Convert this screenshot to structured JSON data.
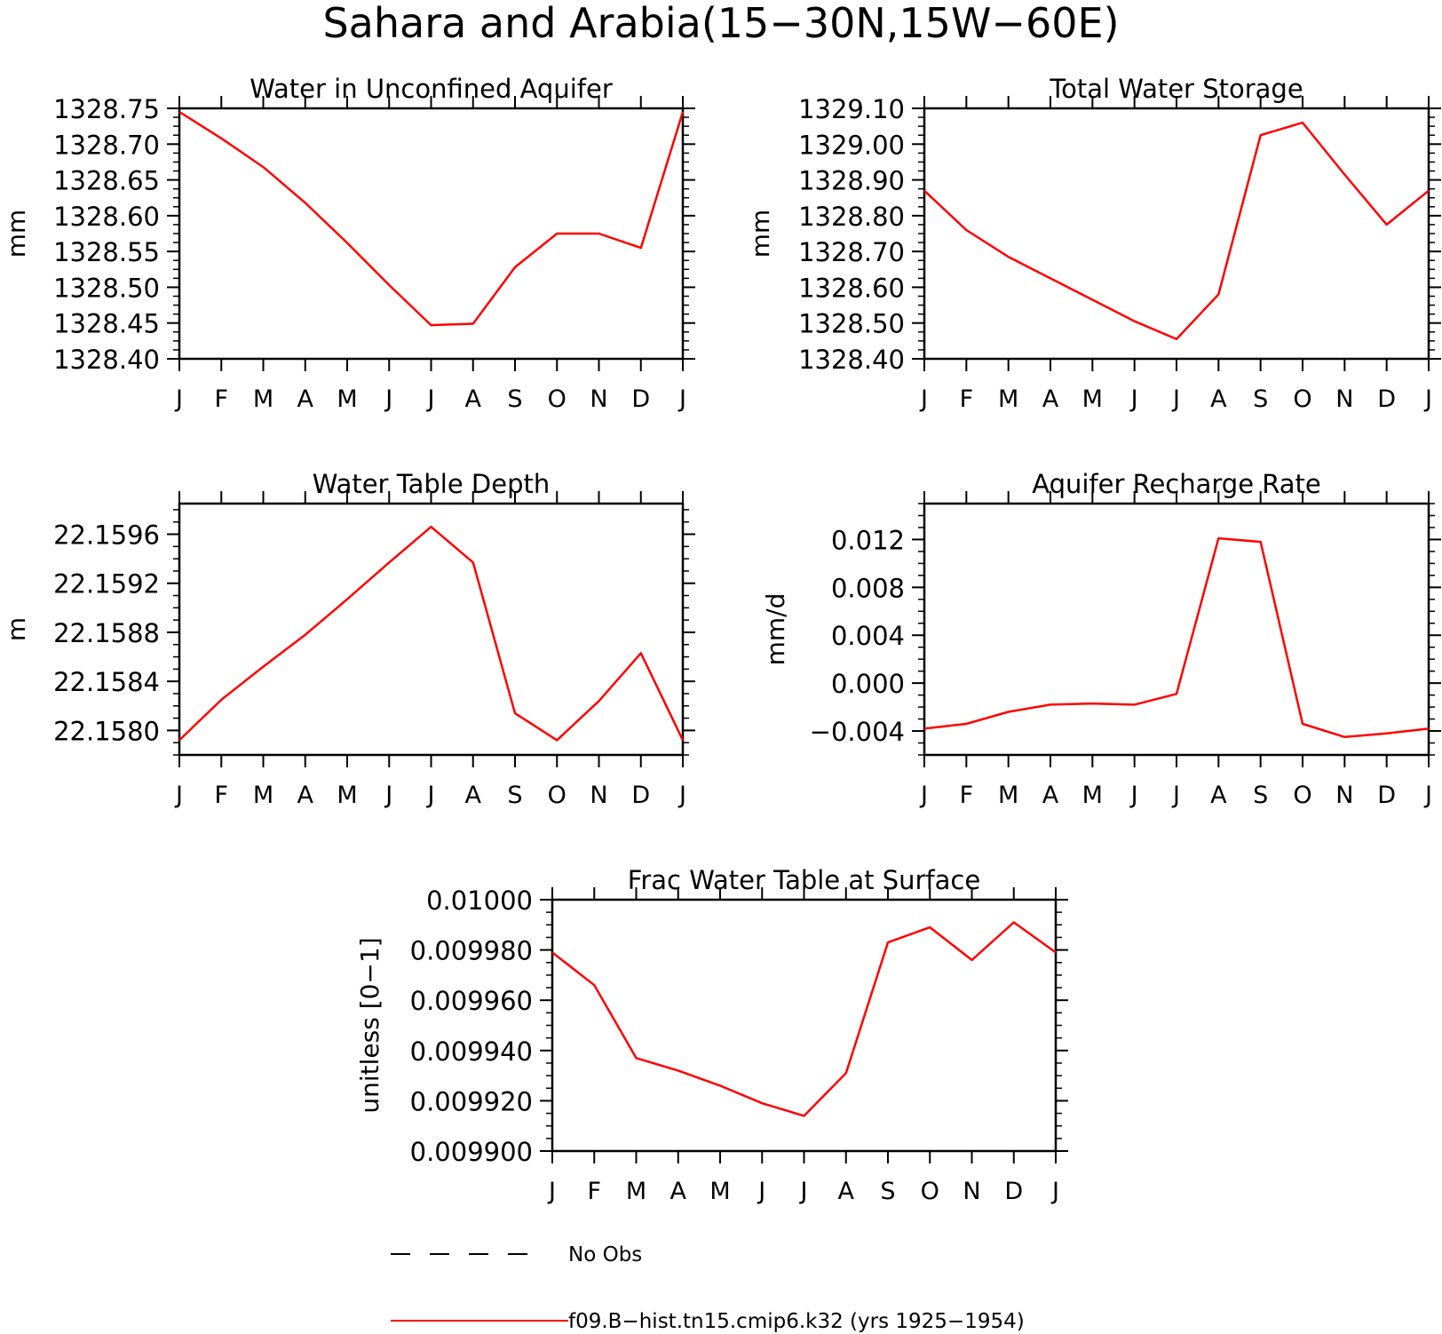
{
  "title": "Sahara and Arabia(15−30N,15W−60E)",
  "months": [
    "J",
    "F",
    "M",
    "A",
    "M",
    "J",
    "J",
    "A",
    "S",
    "O",
    "N",
    "D",
    "J"
  ],
  "series_color": "#ff0000",
  "legend": {
    "obs_label": "No Obs",
    "model_label": "f09.B−hist.tn15.cmip6.k32 (yrs 1925−1954)"
  },
  "chart_data": [
    {
      "type": "line",
      "title": "Water in Unconfined Aquifer",
      "ylabel": "mm",
      "ylim": [
        1328.4,
        1328.75
      ],
      "yticks": [
        1328.4,
        1328.45,
        1328.5,
        1328.55,
        1328.6,
        1328.65,
        1328.7,
        1328.75
      ],
      "ytick_labels": [
        "1328.40",
        "1328.45",
        "1328.50",
        "1328.55",
        "1328.60",
        "1328.65",
        "1328.70",
        "1328.75"
      ],
      "series": [
        {
          "values": [
            1328.745,
            1328.708,
            1328.668,
            1328.618,
            1328.562,
            1328.503,
            1328.447,
            1328.449,
            1328.528,
            1328.575,
            1328.575,
            1328.555,
            1328.745
          ]
        }
      ]
    },
    {
      "type": "line",
      "title": "Total Water Storage",
      "ylabel": "mm",
      "ylim": [
        1328.4,
        1329.1
      ],
      "yticks": [
        1328.4,
        1328.5,
        1328.6,
        1328.7,
        1328.8,
        1328.9,
        1329.0,
        1329.1
      ],
      "ytick_labels": [
        "1328.40",
        "1328.50",
        "1328.60",
        "1328.70",
        "1328.80",
        "1328.90",
        "1329.00",
        "1329.10"
      ],
      "series": [
        {
          "values": [
            1328.87,
            1328.76,
            1328.685,
            1328.625,
            1328.565,
            1328.505,
            1328.455,
            1328.58,
            1329.025,
            1329.06,
            1328.915,
            1328.775,
            1328.87
          ]
        }
      ]
    },
    {
      "type": "line",
      "title": "Water Table Depth",
      "ylabel": "m",
      "ylim": [
        22.1578,
        22.15985
      ],
      "yticks": [
        22.158,
        22.1584,
        22.1588,
        22.1592,
        22.1596
      ],
      "ytick_labels": [
        "22.1580",
        "22.1584",
        "22.1588",
        "22.1592",
        "22.1596"
      ],
      "series": [
        {
          "values": [
            22.15792,
            22.15825,
            22.15852,
            22.15878,
            22.15907,
            22.15937,
            22.15966,
            22.15937,
            22.15814,
            22.15792,
            22.15824,
            22.15863,
            22.15792
          ]
        }
      ]
    },
    {
      "type": "line",
      "title": "Aquifer Recharge Rate",
      "ylabel": "mm/d",
      "ylim": [
        -0.006,
        0.015
      ],
      "yticks": [
        -0.004,
        0.0,
        0.004,
        0.008,
        0.012
      ],
      "ytick_labels": [
        "−0.004",
        "0.000",
        "0.004",
        "0.008",
        "0.012"
      ],
      "series": [
        {
          "values": [
            -0.0038,
            -0.0034,
            -0.0024,
            -0.0018,
            -0.0017,
            -0.0018,
            -0.0009,
            0.0121,
            0.0118,
            -0.0034,
            -0.0045,
            -0.0042,
            -0.0038
          ]
        }
      ]
    },
    {
      "type": "line",
      "title": "Frac Water Table at Surface",
      "ylabel": "unitless [0−1]",
      "ylim": [
        0.0099,
        0.01
      ],
      "yticks": [
        0.0099,
        0.00992,
        0.00994,
        0.00996,
        0.00998,
        0.01
      ],
      "ytick_labels": [
        "0.009900",
        "0.009920",
        "0.009940",
        "0.009960",
        "0.009980",
        "0.01000"
      ],
      "series": [
        {
          "values": [
            0.009979,
            0.009966,
            0.009937,
            0.009932,
            0.009926,
            0.009919,
            0.009914,
            0.009931,
            0.009983,
            0.009989,
            0.009976,
            0.009991,
            0.009979
          ]
        }
      ]
    }
  ]
}
